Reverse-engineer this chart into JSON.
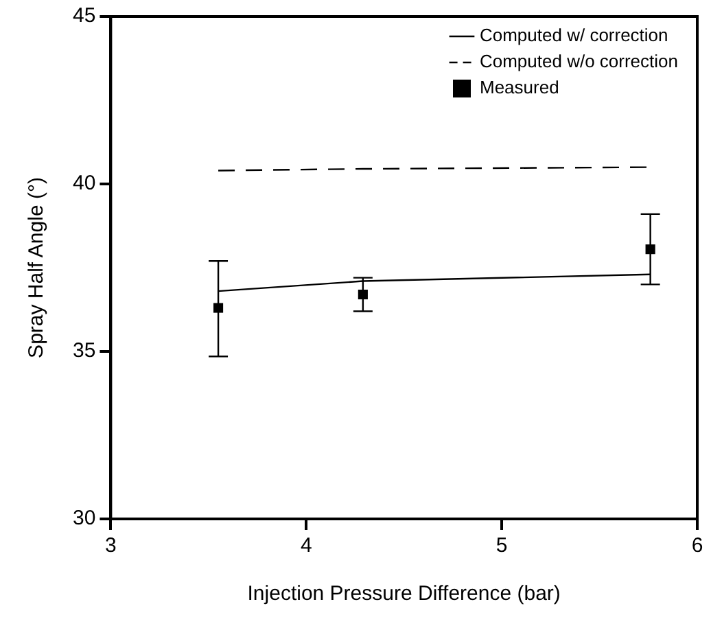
{
  "chart_data": {
    "type": "line",
    "xlabel": "Injection Pressure Difference (bar)",
    "ylabel": "Spray Half Angle (°)",
    "x": [
      3.55,
      4.29,
      5.76
    ],
    "series": [
      {
        "name": "Computed w/ correction",
        "color": "#000000",
        "line_style": "solid",
        "marker": "none",
        "values": [
          36.8,
          37.1,
          37.3
        ]
      },
      {
        "name": "Computed w/o correction",
        "color": "#000000",
        "line_style": "dashed",
        "marker": "none",
        "values": [
          40.4,
          40.45,
          40.5
        ]
      },
      {
        "name": "Measured",
        "type": "scatter",
        "color": "#000000",
        "marker": "square",
        "values": [
          36.3,
          36.7,
          38.05
        ],
        "errors": [
          [
            34.85,
            37.7
          ],
          [
            36.2,
            37.2
          ],
          [
            37.0,
            39.1
          ]
        ]
      }
    ],
    "xlim": [
      3,
      6
    ],
    "xticks": [
      3,
      4,
      5,
      6
    ],
    "ylim": [
      30,
      45
    ],
    "yticks": [
      30,
      35,
      40,
      45
    ],
    "grid": false,
    "legend": "top right"
  }
}
